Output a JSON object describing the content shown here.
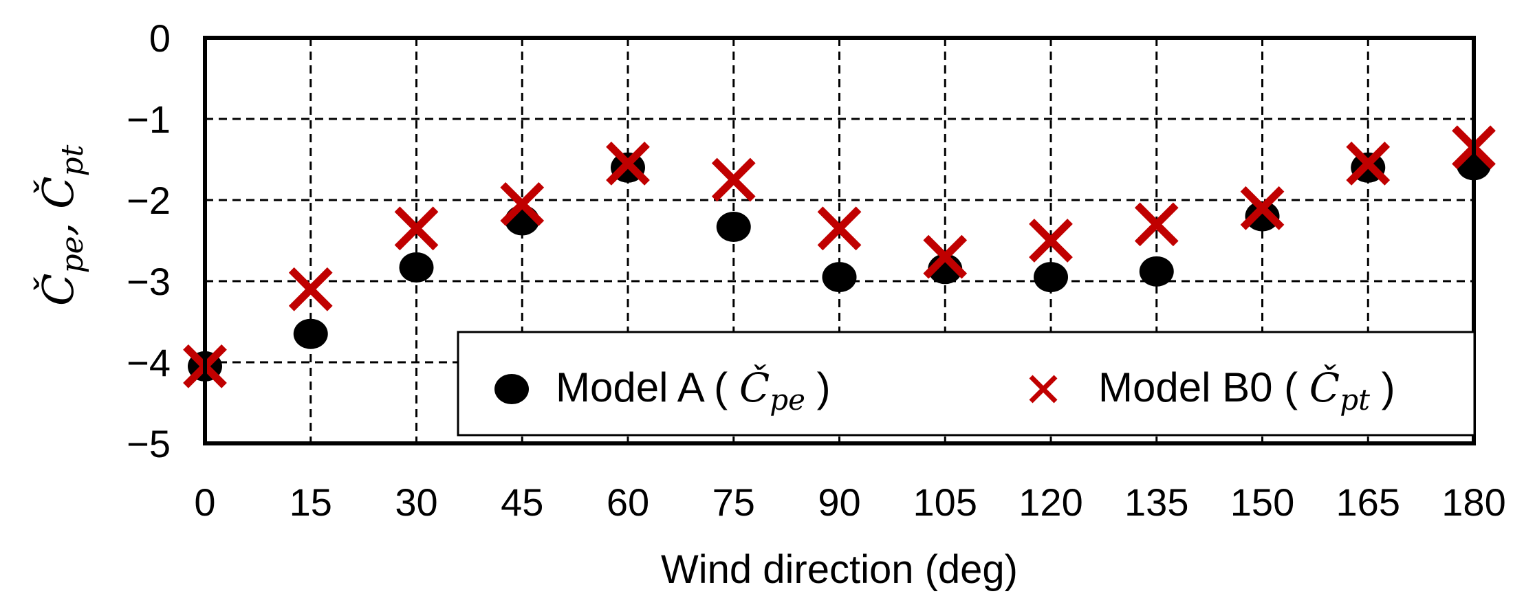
{
  "chart_data": {
    "type": "scatter",
    "xlabel": "Wind direction (deg)",
    "ylabel": {
      "c1_base": "Č",
      "c1_sub": "pe",
      "sep": ", ",
      "c2_base": "Č",
      "c2_sub": "pt"
    },
    "xlim": [
      0,
      180
    ],
    "ylim": [
      -5,
      0
    ],
    "x_ticks": [
      0,
      15,
      30,
      45,
      60,
      75,
      90,
      105,
      120,
      135,
      150,
      165,
      180
    ],
    "x_tick_labels": [
      "0",
      "15",
      "30",
      "45",
      "60",
      "75",
      "90",
      "105",
      "120",
      "135",
      "150",
      "165",
      "180"
    ],
    "y_ticks": [
      0,
      -1,
      -2,
      -3,
      -4,
      -5
    ],
    "y_tick_labels": [
      "0",
      "−1",
      "−2",
      "−3",
      "−4",
      "−5"
    ],
    "grid": true,
    "legend_position": "bottom-right",
    "series": [
      {
        "name": "Model A",
        "legend_prefix": "Model A ( ",
        "legend_math_base": "Č",
        "legend_math_sub": "pe",
        "legend_suffix": " )",
        "marker": "circle",
        "color": "#000000",
        "x": [
          0,
          15,
          30,
          45,
          60,
          75,
          90,
          105,
          120,
          135,
          150,
          165,
          180
        ],
        "y": [
          -4.05,
          -3.65,
          -2.83,
          -2.25,
          -1.6,
          -2.33,
          -2.95,
          -2.85,
          -2.95,
          -2.88,
          -2.2,
          -1.6,
          -1.57
        ]
      },
      {
        "name": "Model B0",
        "legend_prefix": "Model B0 ( ",
        "legend_math_base": "Č",
        "legend_math_sub": "pt",
        "legend_suffix": " )",
        "marker": "x",
        "color": "#c00000",
        "x": [
          0,
          15,
          30,
          45,
          60,
          75,
          90,
          105,
          120,
          135,
          150,
          165,
          180
        ],
        "y": [
          -4.05,
          -3.1,
          -2.35,
          -2.05,
          -1.55,
          -1.75,
          -2.35,
          -2.7,
          -2.5,
          -2.3,
          -2.1,
          -1.55,
          -1.35
        ]
      }
    ]
  }
}
